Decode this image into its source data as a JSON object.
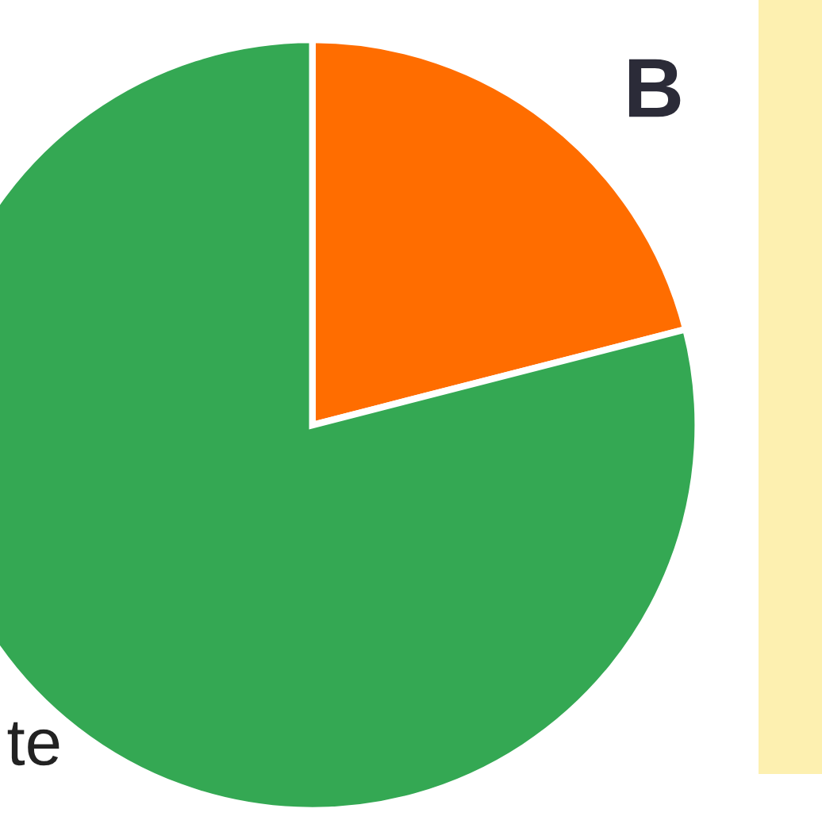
{
  "chart_data": {
    "type": "pie",
    "categories": [
      null,
      "te"
    ],
    "values": [
      21,
      79
    ],
    "colors": [
      "#ff6d00",
      "#34a853"
    ],
    "annotations": [
      "B"
    ]
  }
}
